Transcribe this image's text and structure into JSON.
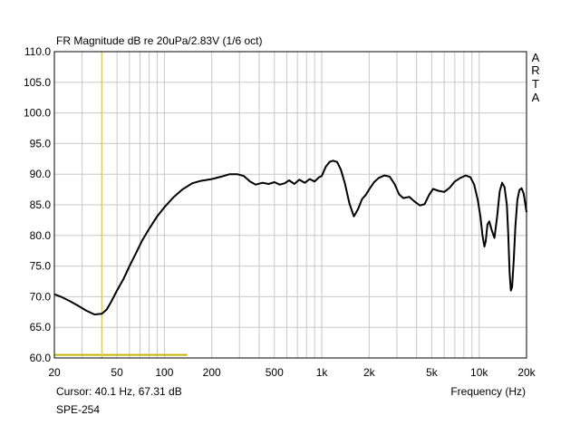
{
  "chart_data": {
    "type": "line",
    "title": "FR Magnitude dB re 20uPa/2.83V (1/6 oct)",
    "xlabel": "Frequency (Hz)",
    "ylabel": "",
    "x_scale": "log",
    "xlim": [
      20,
      20000
    ],
    "ylim": [
      60,
      110
    ],
    "grid": true,
    "x_ticks": [
      {
        "value": 20,
        "label": "20"
      },
      {
        "value": 50,
        "label": "50"
      },
      {
        "value": 100,
        "label": "100"
      },
      {
        "value": 200,
        "label": "200"
      },
      {
        "value": 500,
        "label": "500"
      },
      {
        "value": 1000,
        "label": "1k"
      },
      {
        "value": 2000,
        "label": "2k"
      },
      {
        "value": 5000,
        "label": "5k"
      },
      {
        "value": 10000,
        "label": "10k"
      },
      {
        "value": 20000,
        "label": "20k"
      }
    ],
    "y_ticks": [
      {
        "value": 110,
        "label": "110.0"
      },
      {
        "value": 105,
        "label": "105.0"
      },
      {
        "value": 100,
        "label": "100.0"
      },
      {
        "value": 95,
        "label": "95.0"
      },
      {
        "value": 90,
        "label": "90.0"
      },
      {
        "value": 85,
        "label": "85.0"
      },
      {
        "value": 80,
        "label": "80.0"
      },
      {
        "value": 75,
        "label": "75.0"
      },
      {
        "value": 70,
        "label": "70.0"
      },
      {
        "value": 65,
        "label": "65.0"
      },
      {
        "value": 60,
        "label": "60.0"
      }
    ],
    "series": [
      {
        "x": [
          20,
          22,
          25,
          28,
          32,
          36,
          40,
          43,
          46,
          50,
          55,
          60,
          66,
          72,
          80,
          90,
          100,
          115,
          130,
          150,
          170,
          200,
          230,
          260,
          290,
          320,
          350,
          380,
          420,
          460,
          500,
          540,
          580,
          620,
          670,
          720,
          780,
          840,
          900,
          960,
          1000,
          1060,
          1120,
          1180,
          1250,
          1320,
          1400,
          1500,
          1600,
          1700,
          1800,
          1900,
          2000,
          2150,
          2300,
          2500,
          2700,
          2900,
          3100,
          3300,
          3600,
          3900,
          4200,
          4500,
          4800,
          5100,
          5500,
          6000,
          6500,
          7000,
          7600,
          8200,
          8800,
          9300,
          9800,
          10200,
          10500,
          10800,
          11000,
          11300,
          11600,
          12000,
          12500,
          13000,
          13500,
          14000,
          14500,
          15000,
          15300,
          15600,
          15900,
          16200,
          16600,
          17000,
          17500,
          18000,
          18600,
          19200,
          20000
        ],
        "y": [
          70.4,
          70.0,
          69.3,
          68.6,
          67.7,
          67.1,
          67.2,
          67.9,
          69.2,
          71.0,
          72.9,
          75.0,
          77.1,
          79.1,
          81.1,
          83.1,
          84.6,
          86.3,
          87.5,
          88.5,
          88.9,
          89.2,
          89.6,
          90.0,
          90.0,
          89.7,
          88.8,
          88.3,
          88.6,
          88.4,
          88.7,
          88.3,
          88.5,
          89.0,
          88.4,
          89.1,
          88.6,
          89.2,
          88.8,
          89.5,
          89.7,
          91.2,
          92.0,
          92.2,
          92.0,
          90.8,
          88.6,
          85.2,
          83.1,
          84.3,
          85.9,
          86.6,
          87.5,
          88.7,
          89.4,
          89.8,
          89.6,
          88.4,
          86.7,
          86.1,
          86.3,
          85.5,
          84.9,
          85.1,
          86.6,
          87.6,
          87.3,
          87.1,
          87.8,
          88.8,
          89.4,
          89.8,
          89.5,
          88.3,
          85.8,
          83.0,
          80.0,
          78.2,
          79.0,
          81.8,
          82.3,
          80.9,
          79.6,
          83.0,
          87.2,
          88.6,
          87.9,
          85.0,
          80.3,
          74.0,
          71.0,
          71.6,
          76.0,
          81.5,
          85.8,
          87.4,
          87.7,
          86.8,
          83.8
        ]
      }
    ],
    "cursor": {
      "x": 40.1,
      "color": "#d8d060"
    },
    "reference_line": {
      "y": 60.5,
      "x_from": 20,
      "x_to": 140,
      "color": "#c8b400"
    },
    "grid_color": "#c8c8c8",
    "line_color": "#000000"
  },
  "labels": {
    "title": "FR Magnitude dB re 20uPa/2.83V (1/6 oct)",
    "xlabel": "Frequency (Hz)",
    "cursor_readout": "Cursor: 40.1 Hz, 67.31 dB",
    "model": "SPE-254",
    "brand": [
      "A",
      "R",
      "T",
      "A"
    ]
  }
}
